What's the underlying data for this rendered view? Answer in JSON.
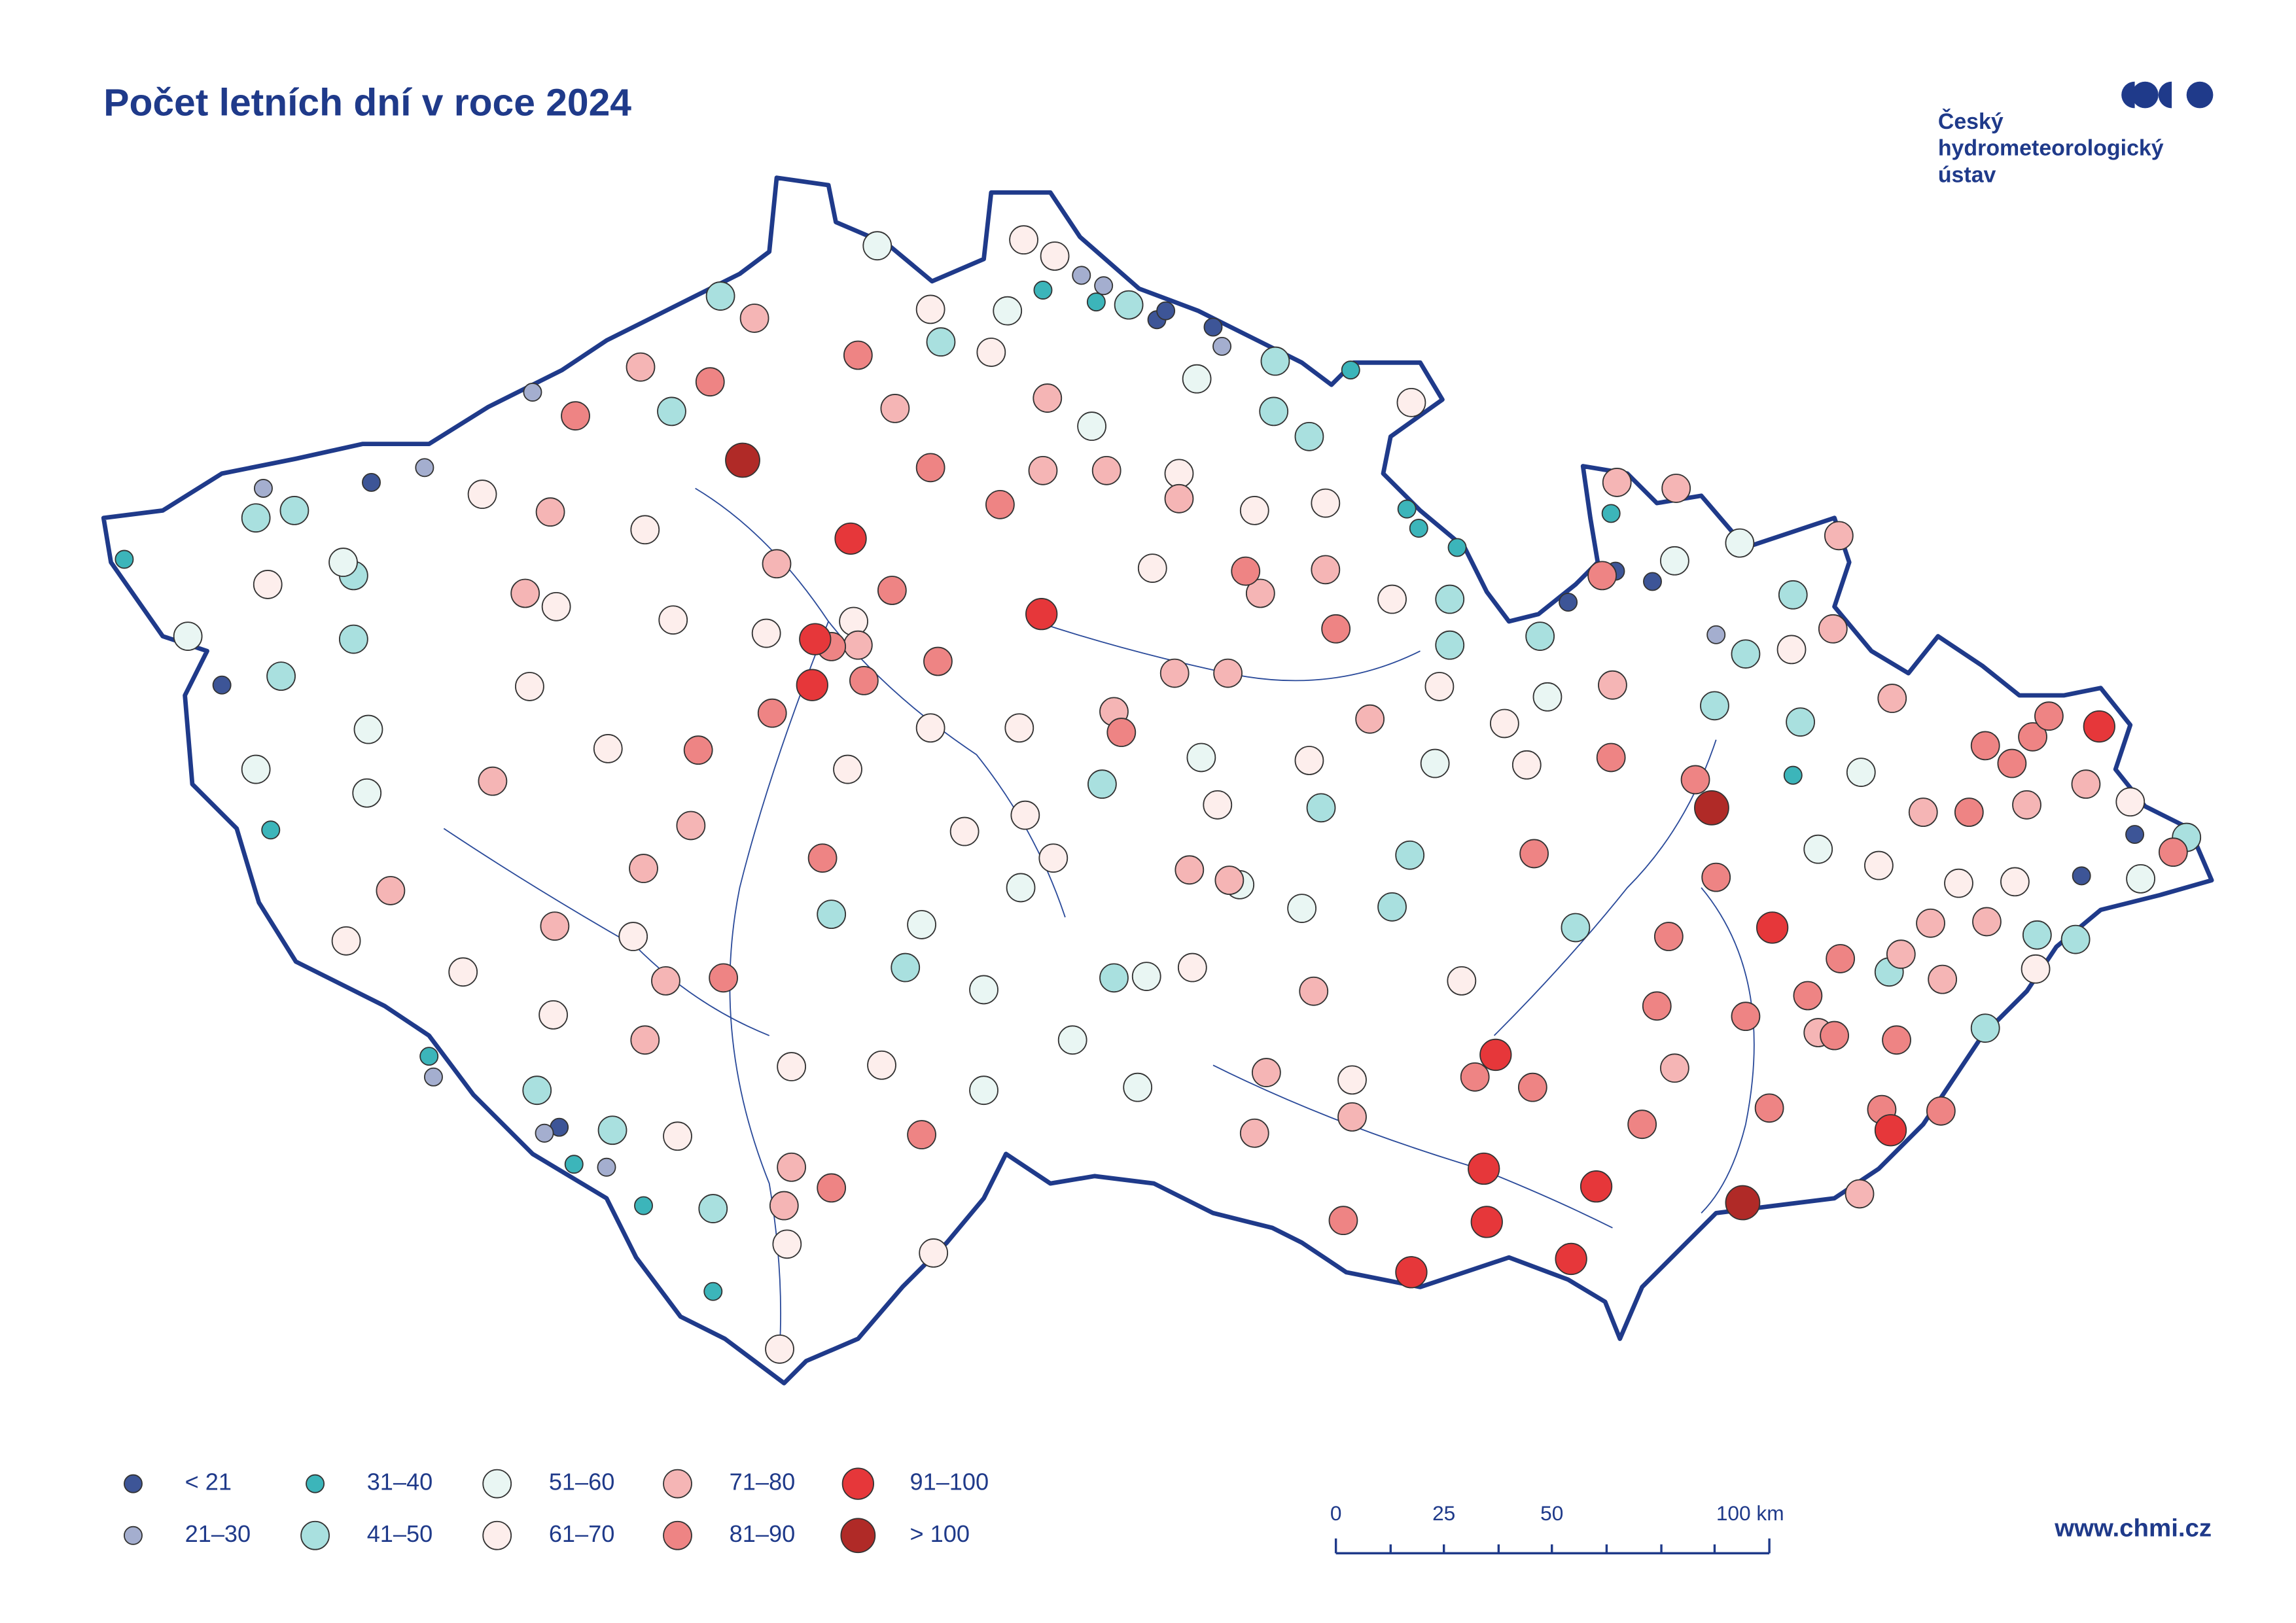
{
  "title": "Počet letních dní v roce 2024",
  "logo": {
    "lines": [
      "Český",
      "hydrometeorologický",
      "ústav"
    ]
  },
  "legend": {
    "items": [
      {
        "label": "< 21",
        "color": "#3d5597"
      },
      {
        "label": "21–30",
        "color": "#a4aecf"
      },
      {
        "label": "31–40",
        "color": "#3cb5ba"
      },
      {
        "label": "41–50",
        "color": "#a9e0df"
      },
      {
        "label": "51–60",
        "color": "#e9f6f3"
      },
      {
        "label": "61–70",
        "color": "#fdeeec"
      },
      {
        "label": "71–80",
        "color": "#f5b5b5"
      },
      {
        "label": "81–90",
        "color": "#ee8484"
      },
      {
        "label": "91–100",
        "color": "#e6373a"
      },
      {
        "label": "> 100",
        "color": "#b02a27"
      }
    ]
  },
  "scale_bar": {
    "labels": [
      "0",
      "25",
      "50",
      "100 km"
    ]
  },
  "url": "www.chmi.cz"
}
